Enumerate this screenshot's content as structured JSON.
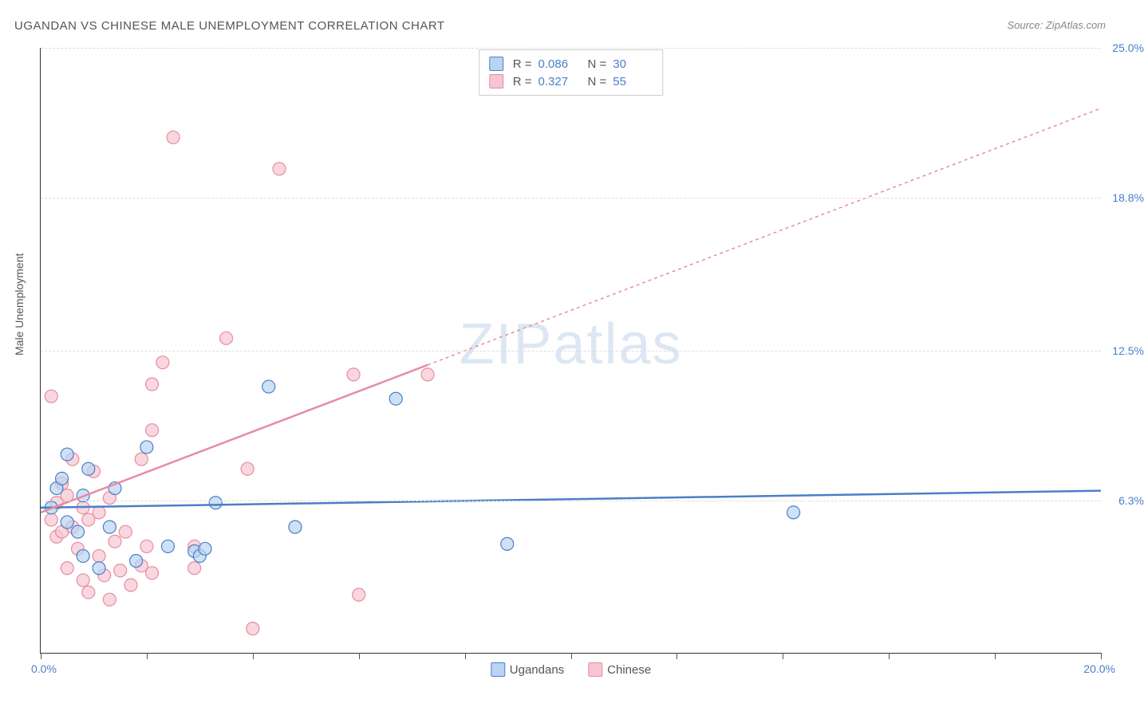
{
  "title": "UGANDAN VS CHINESE MALE UNEMPLOYMENT CORRELATION CHART",
  "source": "Source: ZipAtlas.com",
  "watermark": "ZIPatlas",
  "y_axis_label": "Male Unemployment",
  "chart": {
    "type": "scatter",
    "xlim": [
      0,
      20
    ],
    "ylim": [
      0,
      25
    ],
    "x_tick_step": 2,
    "x_start_label": "0.0%",
    "x_end_label": "20.0%",
    "y_ticks": [
      {
        "v": 6.3,
        "label": "6.3%"
      },
      {
        "v": 12.5,
        "label": "12.5%"
      },
      {
        "v": 18.8,
        "label": "18.8%"
      },
      {
        "v": 25.0,
        "label": "25.0%"
      }
    ],
    "grid_color": "#dddddd",
    "background_color": "#ffffff"
  },
  "series": [
    {
      "name": "Ugandans",
      "color_fill": "#b9d4f1",
      "color_stroke": "#4a7fc8",
      "marker_radius": 8,
      "line_width": 2.5,
      "line_dash_extrapolate": "4,4",
      "R_label": "R =",
      "R_value": "0.086",
      "N_label": "N =",
      "N_value": "30",
      "trend": {
        "x1": 0,
        "y1": 6.0,
        "x2": 20,
        "y2": 6.7,
        "solid_until_x": 20
      },
      "points": [
        {
          "x": 0.2,
          "y": 6.0
        },
        {
          "x": 0.3,
          "y": 6.8
        },
        {
          "x": 0.4,
          "y": 7.2
        },
        {
          "x": 0.5,
          "y": 5.4
        },
        {
          "x": 0.5,
          "y": 8.2
        },
        {
          "x": 0.7,
          "y": 5.0
        },
        {
          "x": 0.8,
          "y": 6.5
        },
        {
          "x": 0.8,
          "y": 4.0
        },
        {
          "x": 0.9,
          "y": 7.6
        },
        {
          "x": 1.1,
          "y": 3.5
        },
        {
          "x": 1.3,
          "y": 5.2
        },
        {
          "x": 1.4,
          "y": 6.8
        },
        {
          "x": 1.8,
          "y": 3.8
        },
        {
          "x": 2.0,
          "y": 8.5
        },
        {
          "x": 2.4,
          "y": 4.4
        },
        {
          "x": 2.9,
          "y": 4.2
        },
        {
          "x": 3.0,
          "y": 4.0
        },
        {
          "x": 3.1,
          "y": 4.3
        },
        {
          "x": 3.3,
          "y": 6.2
        },
        {
          "x": 4.3,
          "y": 11.0
        },
        {
          "x": 4.8,
          "y": 5.2
        },
        {
          "x": 6.7,
          "y": 10.5
        },
        {
          "x": 8.8,
          "y": 4.5
        },
        {
          "x": 14.2,
          "y": 5.8
        }
      ]
    },
    {
      "name": "Chinese",
      "color_fill": "#f6c6d2",
      "color_stroke": "#e88ba3",
      "marker_radius": 8,
      "line_width": 2.5,
      "line_dash_extrapolate": "4,4",
      "R_label": "R =",
      "R_value": "0.327",
      "N_label": "N =",
      "N_value": "55",
      "trend": {
        "x1": 0,
        "y1": 5.8,
        "x2": 20,
        "y2": 22.5,
        "solid_until_x": 7.3
      },
      "points": [
        {
          "x": 0.2,
          "y": 5.5
        },
        {
          "x": 0.2,
          "y": 10.6
        },
        {
          "x": 0.3,
          "y": 6.2
        },
        {
          "x": 0.3,
          "y": 4.8
        },
        {
          "x": 0.4,
          "y": 7.0
        },
        {
          "x": 0.4,
          "y": 5.0
        },
        {
          "x": 0.5,
          "y": 3.5
        },
        {
          "x": 0.5,
          "y": 6.5
        },
        {
          "x": 0.6,
          "y": 5.2
        },
        {
          "x": 0.6,
          "y": 8.0
        },
        {
          "x": 0.7,
          "y": 4.3
        },
        {
          "x": 0.8,
          "y": 6.0
        },
        {
          "x": 0.8,
          "y": 3.0
        },
        {
          "x": 0.9,
          "y": 5.5
        },
        {
          "x": 0.9,
          "y": 2.5
        },
        {
          "x": 1.0,
          "y": 7.5
        },
        {
          "x": 1.1,
          "y": 4.0
        },
        {
          "x": 1.1,
          "y": 5.8
        },
        {
          "x": 1.2,
          "y": 3.2
        },
        {
          "x": 1.3,
          "y": 2.2
        },
        {
          "x": 1.3,
          "y": 6.4
        },
        {
          "x": 1.4,
          "y": 4.6
        },
        {
          "x": 1.5,
          "y": 3.4
        },
        {
          "x": 1.6,
          "y": 5.0
        },
        {
          "x": 1.7,
          "y": 2.8
        },
        {
          "x": 1.9,
          "y": 8.0
        },
        {
          "x": 1.9,
          "y": 3.6
        },
        {
          "x": 2.0,
          "y": 4.4
        },
        {
          "x": 2.1,
          "y": 9.2
        },
        {
          "x": 2.1,
          "y": 11.1
        },
        {
          "x": 2.1,
          "y": 3.3
        },
        {
          "x": 2.3,
          "y": 12.0
        },
        {
          "x": 2.5,
          "y": 21.3
        },
        {
          "x": 2.9,
          "y": 4.4
        },
        {
          "x": 2.9,
          "y": 3.5
        },
        {
          "x": 3.5,
          "y": 13.0
        },
        {
          "x": 3.9,
          "y": 7.6
        },
        {
          "x": 4.0,
          "y": 1.0
        },
        {
          "x": 4.5,
          "y": 20.0
        },
        {
          "x": 5.9,
          "y": 11.5
        },
        {
          "x": 6.0,
          "y": 2.4
        },
        {
          "x": 7.3,
          "y": 11.5
        }
      ]
    }
  ],
  "bottom_legend": [
    {
      "label": "Ugandans",
      "fill": "#b9d4f1",
      "stroke": "#4a7fc8"
    },
    {
      "label": "Chinese",
      "fill": "#f6c6d2",
      "stroke": "#e88ba3"
    }
  ]
}
